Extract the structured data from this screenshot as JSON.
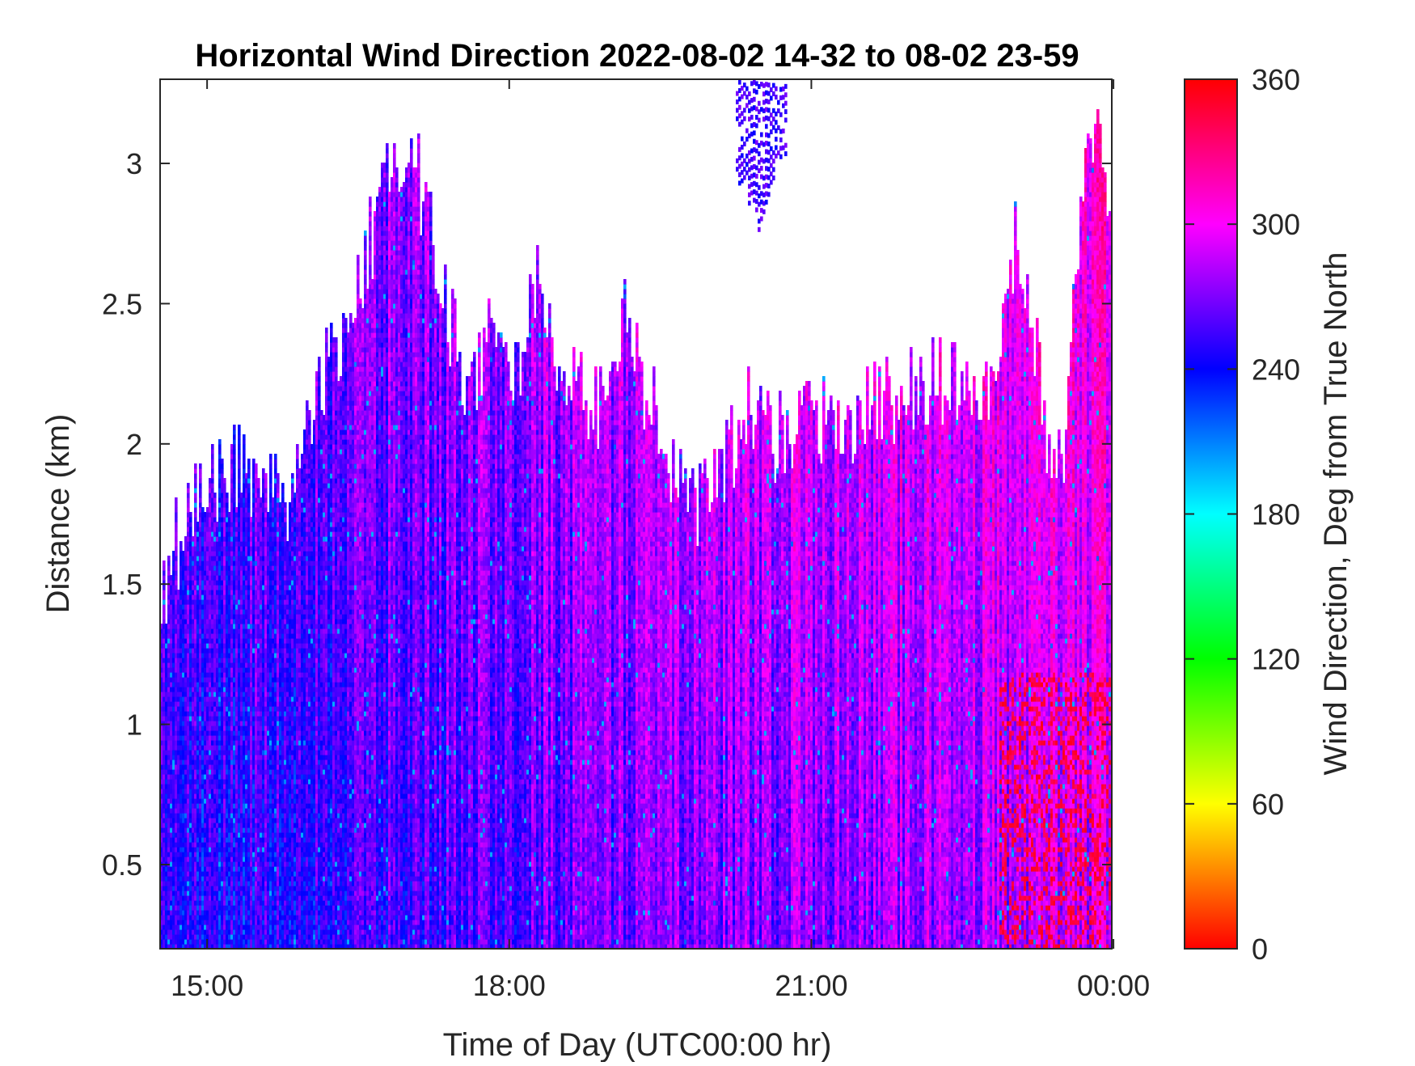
{
  "chart_data": {
    "type": "heatmap",
    "title": "Horizontal Wind Direction 2022-08-02 14-32 to 08-02 23-59",
    "xlabel": "Time of Day (UTC00:00 hr)",
    "ylabel": "Distance (km)",
    "colorbar_label": "Wind Direction, Deg from True North",
    "x_start": "14:32",
    "x_end": "23:59",
    "x_tick_labels": [
      "15:00",
      "18:00",
      "21:00",
      "00:00"
    ],
    "y_ticks": [
      0.5,
      1,
      1.5,
      2,
      2.5,
      3
    ],
    "y_tick_labels": [
      "0.5",
      "1",
      "1.5",
      "2",
      "2.5",
      "3"
    ],
    "ylim": [
      0.2,
      3.3
    ],
    "colorbar_ticks": [
      0,
      60,
      120,
      180,
      240,
      300,
      360
    ],
    "colorbar_tick_labels": [
      "0",
      "60",
      "120",
      "180",
      "240",
      "300",
      "360"
    ],
    "colorbar_range": [
      0,
      360
    ],
    "colormap": "hsv",
    "grid": false,
    "top_of_data_km": [
      {
        "time": "14:32",
        "km": 1.48
      },
      {
        "time": "14:40",
        "km": 1.62
      },
      {
        "time": "14:50",
        "km": 1.72
      },
      {
        "time": "15:00",
        "km": 1.85
      },
      {
        "time": "15:10",
        "km": 1.92
      },
      {
        "time": "15:30",
        "km": 1.9
      },
      {
        "time": "15:45",
        "km": 1.75
      },
      {
        "time": "16:00",
        "km": 2.1
      },
      {
        "time": "16:20",
        "km": 2.4
      },
      {
        "time": "16:40",
        "km": 2.8
      },
      {
        "time": "16:55",
        "km": 3.05
      },
      {
        "time": "17:05",
        "km": 2.95
      },
      {
        "time": "17:20",
        "km": 2.5
      },
      {
        "time": "17:35",
        "km": 2.2
      },
      {
        "time": "17:50",
        "km": 2.45
      },
      {
        "time": "18:00",
        "km": 2.15
      },
      {
        "time": "18:15",
        "km": 2.6
      },
      {
        "time": "18:30",
        "km": 2.2
      },
      {
        "time": "18:50",
        "km": 2.1
      },
      {
        "time": "19:10",
        "km": 2.45
      },
      {
        "time": "19:20",
        "km": 2.2
      },
      {
        "time": "19:35",
        "km": 1.95
      },
      {
        "time": "19:50",
        "km": 1.75
      },
      {
        "time": "20:10",
        "km": 1.95
      },
      {
        "time": "20:20",
        "km": 2.15
      },
      {
        "time": "20:40",
        "km": 2.0
      },
      {
        "time": "21:00",
        "km": 2.05
      },
      {
        "time": "21:30",
        "km": 2.1
      },
      {
        "time": "21:50",
        "km": 2.15
      },
      {
        "time": "22:10",
        "km": 2.2
      },
      {
        "time": "22:30",
        "km": 2.2
      },
      {
        "time": "22:50",
        "km": 2.15
      },
      {
        "time": "23:00",
        "km": 2.7
      },
      {
        "time": "23:10",
        "km": 2.5
      },
      {
        "time": "23:20",
        "km": 2.0
      },
      {
        "time": "23:30",
        "km": 1.95
      },
      {
        "time": "23:40",
        "km": 2.9
      },
      {
        "time": "23:50",
        "km": 3.2
      },
      {
        "time": "23:59",
        "km": 2.7
      }
    ],
    "isolated_patches": [
      {
        "time_start": "20:15",
        "time_end": "20:45",
        "km_min": 2.75,
        "km_max": 3.3,
        "direction_deg": 255
      }
    ],
    "dominant_direction_deg_range": [
      230,
      330
    ]
  }
}
